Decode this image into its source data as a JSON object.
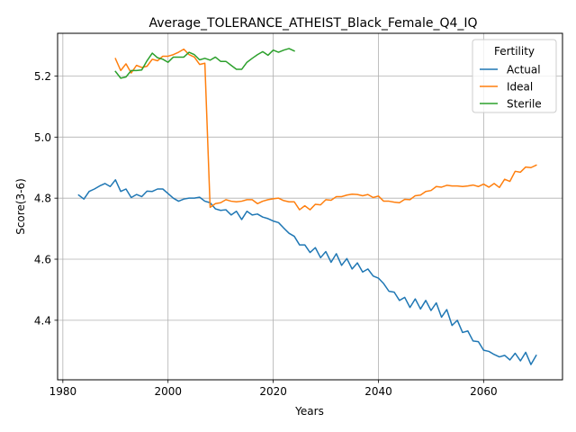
{
  "chart_data": {
    "type": "line",
    "title": "Average_TOLERANCE_ATHEIST_Black_Female_Q4_IQ",
    "xlabel": "Years",
    "ylabel": "Score(3-6)",
    "xlim": [
      1979,
      2075
    ],
    "ylim": [
      4.205,
      5.34
    ],
    "xticks": [
      1980,
      2000,
      2020,
      2040,
      2060
    ],
    "yticks": [
      4.4,
      4.6,
      4.8,
      5.0,
      5.2
    ],
    "xtick_labels": [
      "1980",
      "2000",
      "2020",
      "2040",
      "2060"
    ],
    "ytick_labels": [
      "4.4",
      "4.6",
      "4.8",
      "5.0",
      "5.2"
    ],
    "grid": true,
    "legend": {
      "title": "Fertility",
      "placement": "top-right"
    },
    "series": [
      {
        "name": "Actual",
        "color": "#1f77b4",
        "x": [
          1983,
          1984,
          1985,
          1986,
          1987,
          1988,
          1989,
          1990,
          1991,
          1992,
          1993,
          1994,
          1995,
          1996,
          1997,
          1998,
          1999,
          2000,
          2001,
          2002,
          2003,
          2004,
          2005,
          2006,
          2007,
          2008,
          2009,
          2010,
          2011,
          2012,
          2013,
          2014,
          2015,
          2016,
          2017,
          2018,
          2019,
          2020,
          2021,
          2022,
          2023,
          2024,
          2025,
          2026,
          2027,
          2028,
          2029,
          2030,
          2031,
          2032,
          2033,
          2034,
          2035,
          2036,
          2037,
          2038,
          2039,
          2040,
          2041,
          2042,
          2043,
          2044,
          2045,
          2046,
          2047,
          2048,
          2049,
          2050,
          2051,
          2052,
          2053,
          2054,
          2055,
          2056,
          2057,
          2058,
          2059,
          2060,
          2061,
          2062,
          2063,
          2064,
          2065,
          2066,
          2067,
          2068,
          2069,
          2070
        ],
        "values": [
          4.81,
          4.797,
          4.822,
          4.83,
          4.84,
          4.848,
          4.838,
          4.86,
          4.822,
          4.83,
          4.802,
          4.812,
          4.805,
          4.823,
          4.822,
          4.83,
          4.83,
          4.815,
          4.8,
          4.79,
          4.797,
          4.8,
          4.8,
          4.803,
          4.79,
          4.785,
          4.765,
          4.76,
          4.762,
          4.745,
          4.757,
          4.73,
          4.757,
          4.745,
          4.748,
          4.738,
          4.733,
          4.725,
          4.72,
          4.702,
          4.685,
          4.675,
          4.647,
          4.647,
          4.622,
          4.638,
          4.605,
          4.625,
          4.59,
          4.618,
          4.58,
          4.602,
          4.568,
          4.588,
          4.558,
          4.568,
          4.545,
          4.538,
          4.52,
          4.495,
          4.492,
          4.465,
          4.475,
          4.442,
          4.47,
          4.437,
          4.465,
          4.432,
          4.457,
          4.41,
          4.435,
          4.383,
          4.4,
          4.36,
          4.365,
          4.332,
          4.33,
          4.302,
          4.298,
          4.288,
          4.28,
          4.285,
          4.27,
          4.292,
          4.267,
          4.295,
          4.255,
          4.285
        ]
      },
      {
        "name": "Ideal",
        "color": "#ff7f0e",
        "x": [
          1990,
          1991,
          1992,
          1993,
          1994,
          1995,
          1996,
          1997,
          1998,
          1999,
          2000,
          2001,
          2002,
          2003,
          2004,
          2005,
          2006,
          2007,
          2008,
          2009,
          2010,
          2011,
          2012,
          2013,
          2014,
          2015,
          2016,
          2017,
          2018,
          2019,
          2020,
          2021,
          2022,
          2023,
          2024,
          2025,
          2026,
          2027,
          2028,
          2029,
          2030,
          2031,
          2032,
          2033,
          2034,
          2035,
          2036,
          2037,
          2038,
          2039,
          2040,
          2041,
          2042,
          2043,
          2044,
          2045,
          2046,
          2047,
          2048,
          2049,
          2050,
          2051,
          2052,
          2053,
          2054,
          2055,
          2056,
          2057,
          2058,
          2059,
          2060,
          2061,
          2062,
          2063,
          2064,
          2065,
          2066,
          2067,
          2068,
          2069,
          2070
        ],
        "values": [
          5.257,
          5.218,
          5.24,
          5.21,
          5.235,
          5.228,
          5.232,
          5.255,
          5.25,
          5.265,
          5.265,
          5.27,
          5.278,
          5.288,
          5.27,
          5.262,
          5.238,
          5.242,
          4.77,
          4.782,
          4.785,
          4.795,
          4.79,
          4.788,
          4.79,
          4.795,
          4.795,
          4.782,
          4.79,
          4.795,
          4.798,
          4.8,
          4.792,
          4.788,
          4.788,
          4.762,
          4.775,
          4.762,
          4.78,
          4.778,
          4.795,
          4.793,
          4.805,
          4.805,
          4.81,
          4.813,
          4.812,
          4.808,
          4.812,
          4.802,
          4.807,
          4.79,
          4.79,
          4.787,
          4.785,
          4.796,
          4.795,
          4.808,
          4.81,
          4.822,
          4.825,
          4.838,
          4.836,
          4.842,
          4.84,
          4.84,
          4.838,
          4.84,
          4.843,
          4.838,
          4.846,
          4.836,
          4.848,
          4.835,
          4.862,
          4.855,
          4.888,
          4.885,
          4.902,
          4.9,
          4.908
        ]
      },
      {
        "name": "Sterile",
        "color": "#2ca02c",
        "x": [
          1990,
          1991,
          1992,
          1993,
          1994,
          1995,
          1996,
          1997,
          1998,
          1999,
          2000,
          2001,
          2002,
          2003,
          2004,
          2005,
          2006,
          2007,
          2008,
          2009,
          2010,
          2011,
          2012,
          2013,
          2014,
          2015,
          2016,
          2017,
          2018,
          2019,
          2020,
          2021,
          2022,
          2023,
          2024
        ],
        "values": [
          5.215,
          5.193,
          5.197,
          5.218,
          5.218,
          5.22,
          5.25,
          5.275,
          5.26,
          5.255,
          5.245,
          5.262,
          5.262,
          5.262,
          5.278,
          5.27,
          5.253,
          5.258,
          5.252,
          5.262,
          5.248,
          5.248,
          5.235,
          5.222,
          5.222,
          5.245,
          5.258,
          5.27,
          5.28,
          5.268,
          5.285,
          5.278,
          5.285,
          5.29,
          5.282
        ]
      }
    ]
  }
}
